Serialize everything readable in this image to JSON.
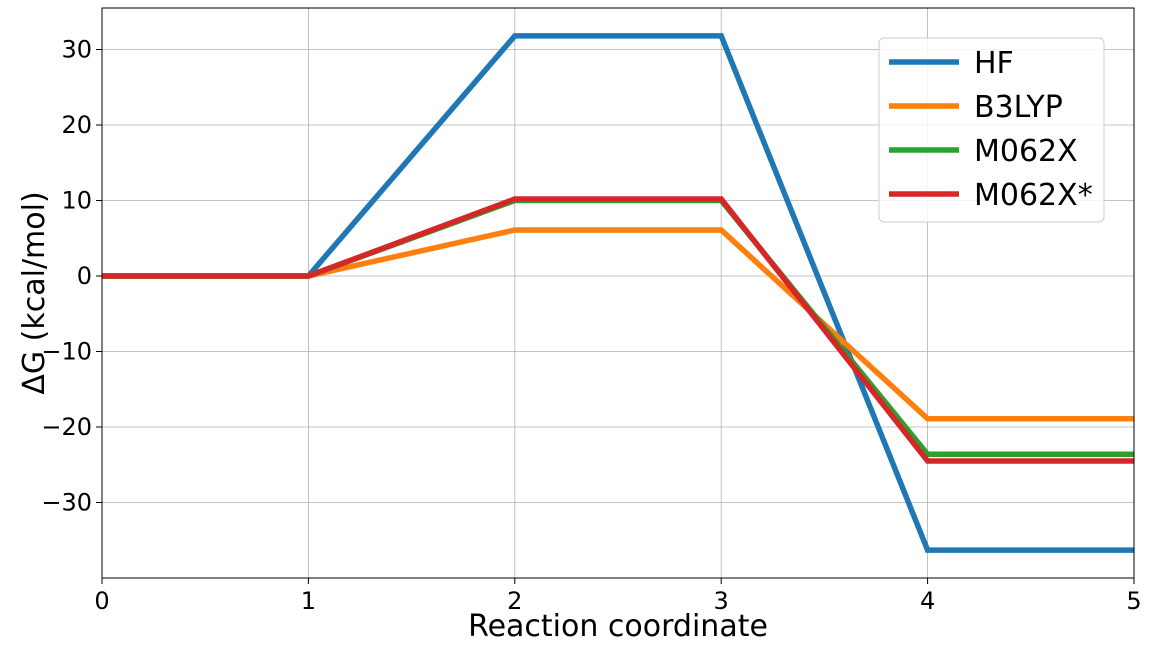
{
  "chart_data": {
    "type": "line",
    "title": "",
    "xlabel": "Reaction coordinate",
    "ylabel": "ΔG (kcal/mol)",
    "xlim": [
      0,
      5
    ],
    "ylim": [
      -40,
      35.5
    ],
    "xticks": [
      0,
      1,
      2,
      3,
      4,
      5
    ],
    "yticks": [
      30,
      20,
      10,
      0,
      -10,
      -20,
      -30
    ],
    "ytick_labels": [
      "30",
      "20",
      "10",
      "0",
      "−10",
      "−20",
      "−30"
    ],
    "grid": true,
    "legend_position": "upper-right",
    "x": [
      0,
      1,
      2,
      3,
      4,
      5
    ],
    "series": [
      {
        "name": "HF",
        "color": "#1f77b4",
        "values": [
          0,
          0,
          31.8,
          31.8,
          -36.3,
          -36.3
        ]
      },
      {
        "name": "B3LYP",
        "color": "#ff7f0e",
        "values": [
          0,
          0,
          6.1,
          6.1,
          -18.9,
          -18.9
        ]
      },
      {
        "name": "M062X",
        "color": "#2ca02c",
        "values": [
          0,
          0,
          10.0,
          10.0,
          -23.6,
          -23.6
        ]
      },
      {
        "name": "M062X*",
        "color": "#d62728",
        "values": [
          0,
          0,
          10.2,
          10.2,
          -24.5,
          -24.5
        ]
      }
    ]
  }
}
